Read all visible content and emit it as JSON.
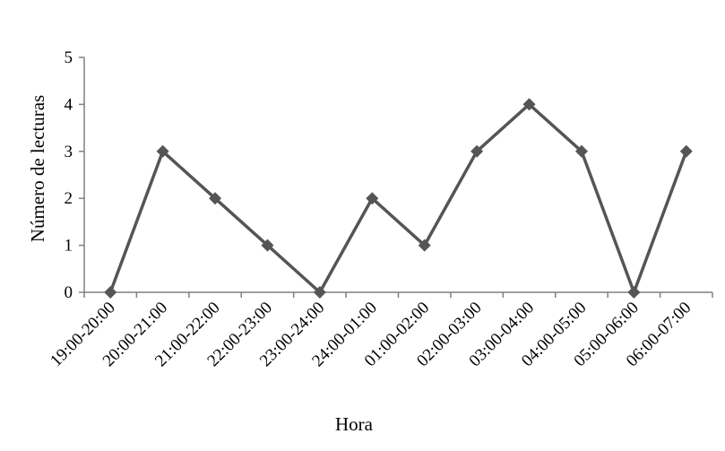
{
  "chart_data": {
    "type": "line",
    "xlabel": "Hora",
    "ylabel": "Número de lecturas",
    "categories": [
      "19:00-20:00",
      "20:00-21:00",
      "21:00-22:00",
      "22:00-23:00",
      "23:00-24:00",
      "24:00-01:00",
      "01:00-02:00",
      "02:00-03:00",
      "03:00-04:00",
      "04:00-05:00",
      "05:00-06:00",
      "06:00-07:00"
    ],
    "series": [
      {
        "values": [
          0,
          3,
          2,
          1,
          0,
          2,
          1,
          3,
          4,
          3,
          0,
          3
        ]
      }
    ],
    "ylim": [
      0,
      5
    ],
    "yticks": [
      0,
      1,
      2,
      3,
      4,
      5
    ],
    "grid": false,
    "legend": "none",
    "line_color": "#555555"
  }
}
